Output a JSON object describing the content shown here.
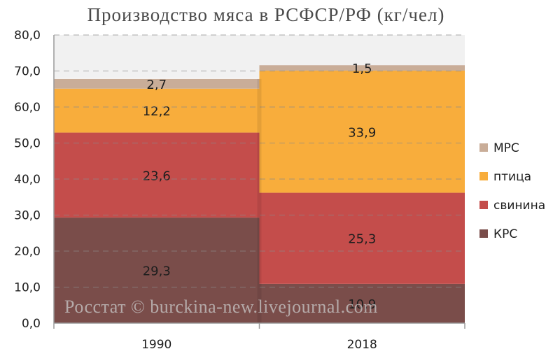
{
  "chart_data": {
    "type": "bar",
    "stacked": true,
    "title": "Производство мяса в РСФСР/РФ (кг/чел)",
    "categories": [
      "1990",
      "2018"
    ],
    "series": [
      {
        "name": "КРС",
        "values": [
          29.3,
          10.9
        ],
        "labels": [
          "29,3",
          "10,9"
        ],
        "color": "#7a4d4a"
      },
      {
        "name": "свинина",
        "values": [
          23.6,
          25.3
        ],
        "labels": [
          "23,6",
          "25,3"
        ],
        "color": "#c44d4b"
      },
      {
        "name": "птица",
        "values": [
          12.2,
          33.9
        ],
        "labels": [
          "12,2",
          "33,9"
        ],
        "color": "#f8ad3c"
      },
      {
        "name": "МРС",
        "values": [
          2.7,
          1.5
        ],
        "labels": [
          "2,7",
          "1,5"
        ],
        "color": "#c9ad98"
      }
    ],
    "yticks": [
      "0,0",
      "10,0",
      "20,0",
      "30,0",
      "40,0",
      "50,0",
      "60,0",
      "70,0",
      "80,0"
    ],
    "ylim": [
      0,
      80
    ],
    "grid": true,
    "legend_position": "right",
    "watermark": "Росстат © burckina-new.livejournal.com"
  }
}
